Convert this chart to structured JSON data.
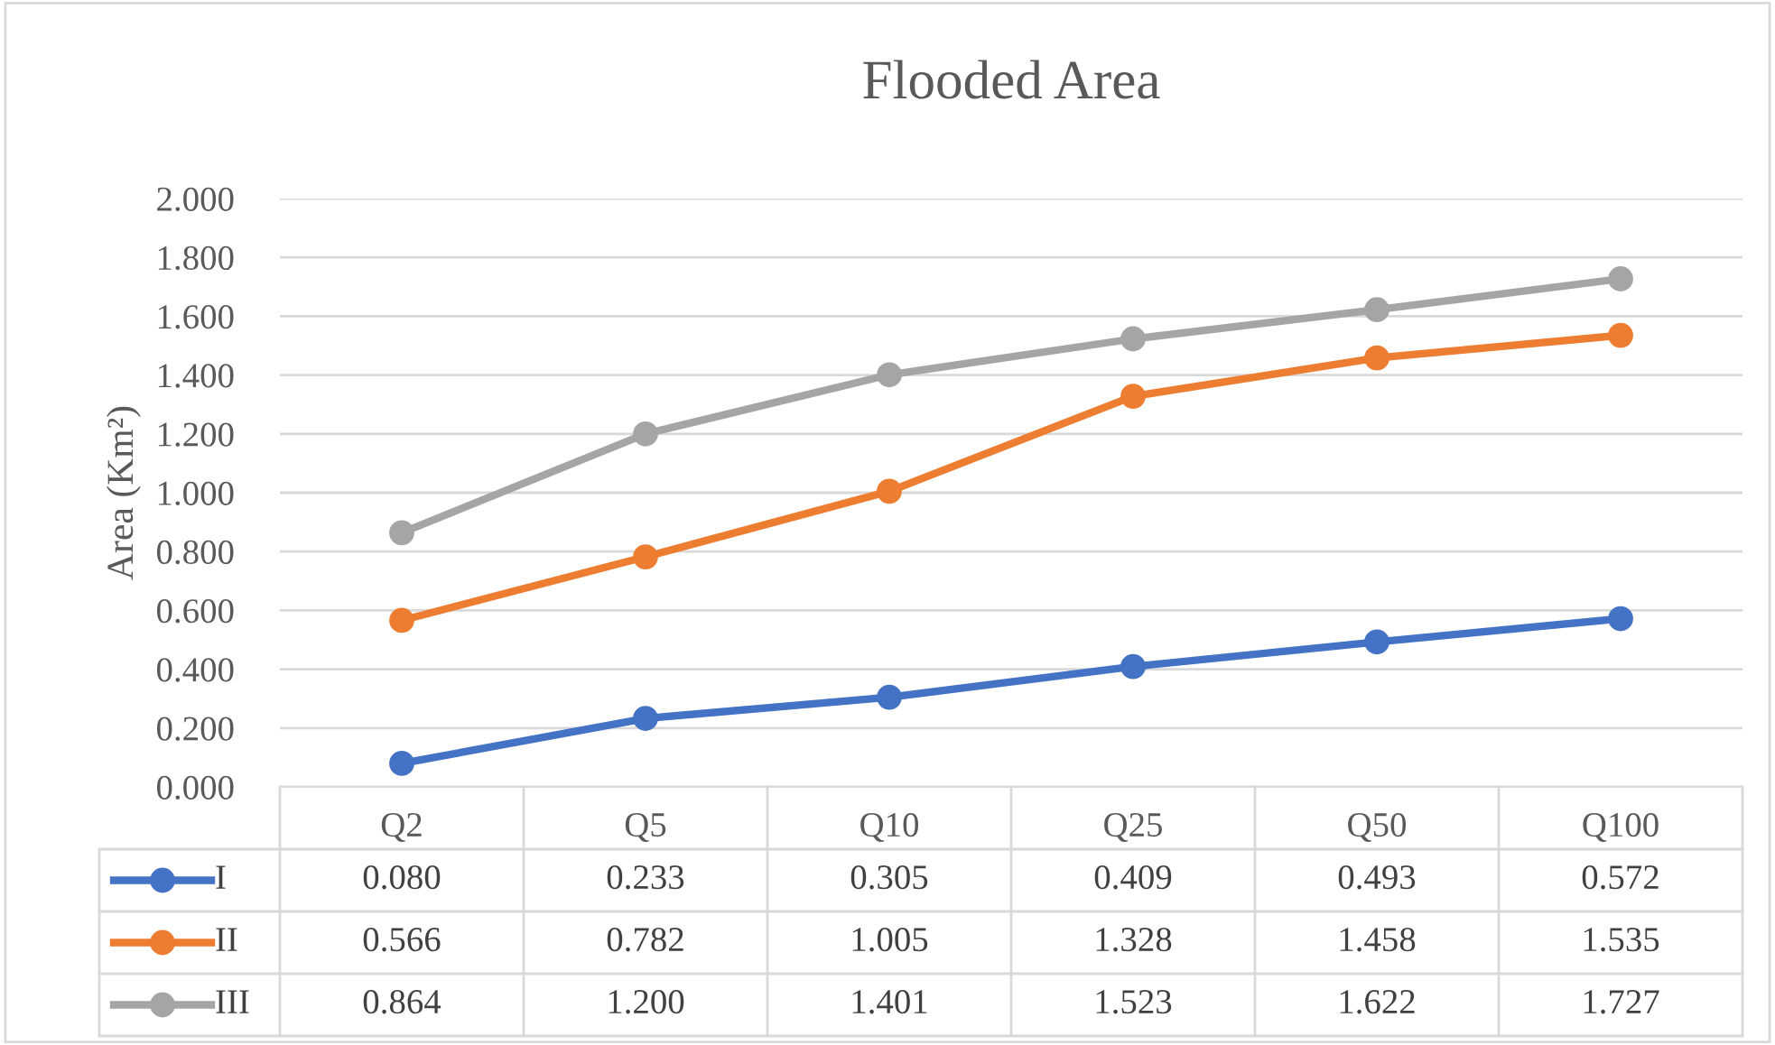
{
  "chart_data": {
    "type": "line",
    "title": "Flooded Area",
    "ylabel": "Area (Km²)",
    "categories": [
      "Q2",
      "Q5",
      "Q10",
      "Q25",
      "Q50",
      "Q100"
    ],
    "series": [
      {
        "name": "I",
        "color": "#4472c4",
        "values": [
          0.08,
          0.233,
          0.305,
          0.409,
          0.493,
          0.572
        ],
        "value_labels": [
          "0.080",
          "0.233",
          "0.305",
          "0.409",
          "0.493",
          "0.572"
        ]
      },
      {
        "name": "II",
        "color": "#ed7d31",
        "values": [
          0.566,
          0.782,
          1.005,
          1.328,
          1.458,
          1.535
        ],
        "value_labels": [
          "0.566",
          "0.782",
          "1.005",
          "1.328",
          "1.458",
          "1.535"
        ]
      },
      {
        "name": "III",
        "color": "#a5a5a5",
        "values": [
          0.864,
          1.2,
          1.401,
          1.523,
          1.622,
          1.727
        ],
        "value_labels": [
          "0.864",
          "1.200",
          "1.401",
          "1.523",
          "1.622",
          "1.727"
        ]
      }
    ],
    "ylim": [
      0,
      2
    ],
    "yticks": [
      {
        "value": 0,
        "label": "0.000"
      },
      {
        "value": 0.2,
        "label": "0.200"
      },
      {
        "value": 0.4,
        "label": "0.400"
      },
      {
        "value": 0.6,
        "label": "0.600"
      },
      {
        "value": 0.8,
        "label": "0.800"
      },
      {
        "value": 1.0,
        "label": "1.000"
      },
      {
        "value": 1.2,
        "label": "1.200"
      },
      {
        "value": 1.4,
        "label": "1.400"
      },
      {
        "value": 1.6,
        "label": "1.600"
      },
      {
        "value": 1.8,
        "label": "1.800"
      },
      {
        "value": 2.0,
        "label": "2.000"
      }
    ],
    "grid": "y",
    "legend": "bottom",
    "marker": "circle",
    "line_style": "solid"
  }
}
